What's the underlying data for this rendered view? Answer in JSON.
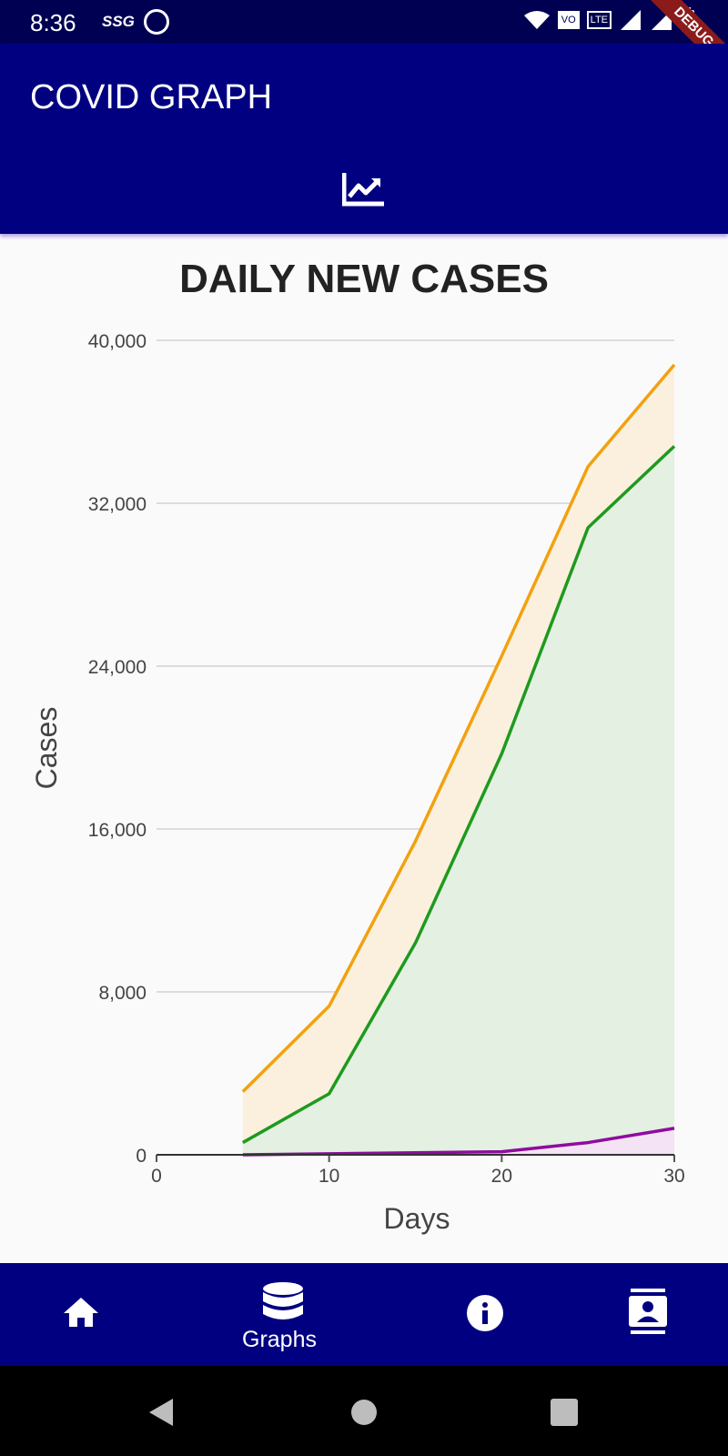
{
  "status_bar": {
    "time": "8:36",
    "carrier_tag": "SSG",
    "vo_tag": "VO",
    "lte_tag": "LTE",
    "icons": [
      "q-icon",
      "wifi-icon",
      "signal-icon",
      "battery-icon"
    ]
  },
  "debug_banner": "DEBUG",
  "app_bar": {
    "title": "COVID GRAPH",
    "tab_icon": "chart-line-icon"
  },
  "colors": {
    "app_bar": "#000080",
    "status_bar": "#000052",
    "series_total": "#f2a10f",
    "series_recovered": "#1e9a1e",
    "series_deaths": "#8e0c9e"
  },
  "chart_data": {
    "type": "area",
    "title": "DAILY NEW CASES",
    "xlabel": "Days",
    "ylabel": "Cases",
    "xlim": [
      0,
      30
    ],
    "ylim": [
      0,
      40000
    ],
    "xticks": [
      "0",
      "10",
      "20",
      "30"
    ],
    "yticks": [
      "0",
      "8,000",
      "16,000",
      "24,000",
      "32,000",
      "40,000"
    ],
    "grid": true,
    "legend": "none",
    "x": [
      5,
      10,
      15,
      20,
      25,
      30
    ],
    "series": [
      {
        "values": [
          3100,
          7300,
          15400,
          24500,
          33800,
          38800
        ]
      },
      {
        "values": [
          600,
          3000,
          10400,
          19700,
          30800,
          34800
        ]
      },
      {
        "values": [
          0,
          50,
          100,
          150,
          600,
          1300
        ]
      }
    ]
  },
  "bottom_nav": {
    "items": [
      {
        "icon": "home-icon"
      },
      {
        "icon": "database-icon",
        "label": "Graphs"
      },
      {
        "icon": "info-icon"
      },
      {
        "icon": "contact-icon"
      }
    ]
  },
  "system_nav": {
    "icons": [
      "back-icon",
      "home-circle-icon",
      "recents-icon"
    ]
  }
}
